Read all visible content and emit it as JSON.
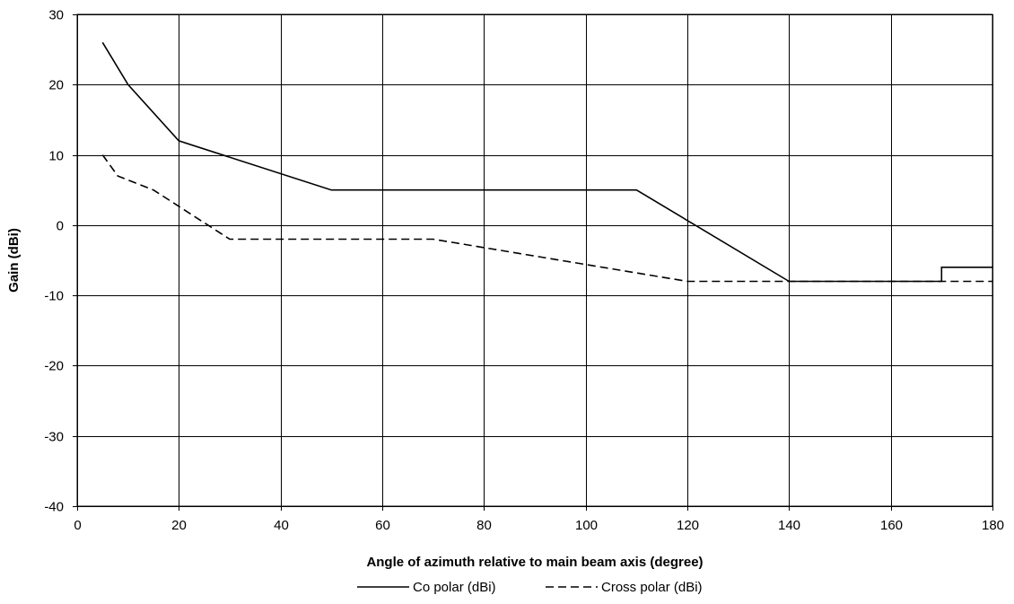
{
  "chart_data": {
    "type": "line",
    "title": "",
    "xlabel": "Angle of azimuth relative to main beam axis (degree)",
    "ylabel": "Gain (dBi)",
    "xlim": [
      0,
      180
    ],
    "ylim": [
      -40,
      30
    ],
    "xticks": [
      0,
      20,
      40,
      60,
      80,
      100,
      120,
      140,
      160,
      180
    ],
    "yticks": [
      -40,
      -30,
      -20,
      -10,
      0,
      10,
      20,
      30
    ],
    "grid": true,
    "legend_position": "bottom",
    "series": [
      {
        "name": "Co polar (dBi)",
        "style": "solid",
        "color": "#000000",
        "points": [
          [
            5,
            26
          ],
          [
            10,
            20
          ],
          [
            20,
            12
          ],
          [
            50,
            5
          ],
          [
            110,
            5
          ],
          [
            140,
            -8
          ],
          [
            170,
            -8
          ],
          [
            170,
            -6
          ],
          [
            180,
            -6
          ]
        ]
      },
      {
        "name": "Cross polar (dBi)",
        "style": "dashed",
        "color": "#000000",
        "points": [
          [
            5,
            10
          ],
          [
            8,
            7
          ],
          [
            15,
            5
          ],
          [
            30,
            -2
          ],
          [
            70,
            -2
          ],
          [
            120,
            -8
          ],
          [
            180,
            -8
          ]
        ]
      }
    ]
  }
}
